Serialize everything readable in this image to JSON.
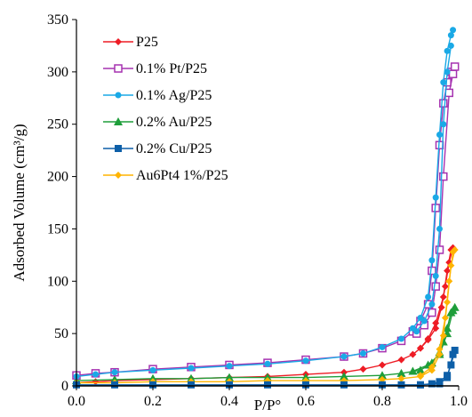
{
  "chart_data": {
    "type": "line",
    "xlabel": "P/P°",
    "ylabel": "Adsorbed Volume (cm³/g)",
    "xlim": [
      0,
      1
    ],
    "ylim": [
      0,
      350
    ],
    "x_ticks": [
      "0.0",
      "0.2",
      "0.4",
      "0.6",
      "0.8",
      "1.0"
    ],
    "y_ticks": [
      "0",
      "50",
      "100",
      "150",
      "200",
      "250",
      "300",
      "350"
    ],
    "grid": false,
    "legend_position": "top-left",
    "series": [
      {
        "name": "P25",
        "color": "#ee1c25",
        "marker": "diamond",
        "adsorption": [
          [
            0.0,
            3
          ],
          [
            0.05,
            4
          ],
          [
            0.1,
            5
          ],
          [
            0.2,
            6
          ],
          [
            0.3,
            7
          ],
          [
            0.4,
            8
          ],
          [
            0.5,
            9
          ],
          [
            0.6,
            11
          ],
          [
            0.7,
            13
          ],
          [
            0.75,
            16
          ],
          [
            0.8,
            20
          ],
          [
            0.85,
            25
          ],
          [
            0.88,
            30
          ],
          [
            0.9,
            36
          ],
          [
            0.92,
            45
          ],
          [
            0.94,
            60
          ],
          [
            0.96,
            85
          ],
          [
            0.97,
            110
          ],
          [
            0.98,
            130
          ]
        ],
        "desorption": [
          [
            0.985,
            132
          ],
          [
            0.975,
            118
          ],
          [
            0.965,
            95
          ],
          [
            0.955,
            75
          ],
          [
            0.94,
            55
          ],
          [
            0.92,
            44
          ],
          [
            0.9,
            36
          ]
        ]
      },
      {
        "name": "0.1% Pt/P25",
        "color": "#a632b0",
        "marker": "square-open",
        "adsorption": [
          [
            0.0,
            10
          ],
          [
            0.05,
            12
          ],
          [
            0.1,
            13
          ],
          [
            0.2,
            16
          ],
          [
            0.3,
            18
          ],
          [
            0.4,
            20
          ],
          [
            0.5,
            22
          ],
          [
            0.6,
            25
          ],
          [
            0.7,
            28
          ],
          [
            0.75,
            31
          ],
          [
            0.8,
            36
          ],
          [
            0.85,
            43
          ],
          [
            0.88,
            52
          ],
          [
            0.9,
            62
          ],
          [
            0.92,
            78
          ],
          [
            0.93,
            110
          ],
          [
            0.94,
            170
          ],
          [
            0.95,
            230
          ],
          [
            0.96,
            270
          ],
          [
            0.97,
            290
          ],
          [
            0.98,
            300
          ],
          [
            0.99,
            305
          ]
        ],
        "desorption": [
          [
            0.985,
            298
          ],
          [
            0.975,
            280
          ],
          [
            0.96,
            200
          ],
          [
            0.95,
            130
          ],
          [
            0.94,
            95
          ],
          [
            0.93,
            70
          ],
          [
            0.91,
            58
          ],
          [
            0.89,
            50
          ]
        ]
      },
      {
        "name": "0.1% Ag/P25",
        "color": "#1aa9e6",
        "marker": "circle",
        "adsorption": [
          [
            0.0,
            9
          ],
          [
            0.05,
            11
          ],
          [
            0.1,
            13
          ],
          [
            0.2,
            15
          ],
          [
            0.3,
            17
          ],
          [
            0.4,
            19
          ],
          [
            0.5,
            21
          ],
          [
            0.6,
            24
          ],
          [
            0.7,
            28
          ],
          [
            0.75,
            31
          ],
          [
            0.8,
            37
          ],
          [
            0.85,
            45
          ],
          [
            0.88,
            55
          ],
          [
            0.9,
            65
          ],
          [
            0.92,
            85
          ],
          [
            0.93,
            120
          ],
          [
            0.94,
            180
          ],
          [
            0.95,
            240
          ],
          [
            0.96,
            290
          ],
          [
            0.97,
            320
          ],
          [
            0.98,
            335
          ],
          [
            0.985,
            340
          ]
        ],
        "desorption": [
          [
            0.98,
            325
          ],
          [
            0.97,
            300
          ],
          [
            0.96,
            250
          ],
          [
            0.95,
            150
          ],
          [
            0.94,
            105
          ],
          [
            0.93,
            78
          ],
          [
            0.91,
            62
          ],
          [
            0.89,
            52
          ]
        ]
      },
      {
        "name": "0.2% Au/P25",
        "color": "#1e9e3a",
        "marker": "triangle",
        "adsorption": [
          [
            0.0,
            5
          ],
          [
            0.1,
            6
          ],
          [
            0.2,
            7
          ],
          [
            0.3,
            7
          ],
          [
            0.4,
            8
          ],
          [
            0.5,
            8
          ],
          [
            0.6,
            8
          ],
          [
            0.7,
            9
          ],
          [
            0.8,
            10
          ],
          [
            0.85,
            12
          ],
          [
            0.9,
            15
          ],
          [
            0.93,
            22
          ],
          [
            0.95,
            32
          ],
          [
            0.96,
            42
          ],
          [
            0.97,
            55
          ],
          [
            0.98,
            70
          ],
          [
            0.99,
            75
          ]
        ],
        "desorption": [
          [
            0.985,
            72
          ],
          [
            0.97,
            50
          ],
          [
            0.95,
            30
          ],
          [
            0.92,
            20
          ],
          [
            0.88,
            14
          ]
        ]
      },
      {
        "name": "0.2% Cu/P25",
        "color": "#0d5fa8",
        "marker": "square",
        "adsorption": [
          [
            0.0,
            1
          ],
          [
            0.1,
            1
          ],
          [
            0.2,
            1
          ],
          [
            0.3,
            1
          ],
          [
            0.4,
            1
          ],
          [
            0.5,
            1
          ],
          [
            0.6,
            1
          ],
          [
            0.7,
            1
          ],
          [
            0.8,
            1
          ],
          [
            0.85,
            1
          ],
          [
            0.9,
            1
          ],
          [
            0.93,
            2
          ],
          [
            0.95,
            4
          ],
          [
            0.97,
            10
          ],
          [
            0.98,
            20
          ],
          [
            0.99,
            34
          ]
        ],
        "desorption": [
          [
            0.985,
            30
          ],
          [
            0.97,
            8
          ],
          [
            0.95,
            2
          ],
          [
            0.9,
            1
          ]
        ]
      },
      {
        "name": "Au6Pt4 1%/P25",
        "color": "#ffb400",
        "marker": "diamond",
        "adsorption": [
          [
            0.0,
            3
          ],
          [
            0.1,
            3
          ],
          [
            0.2,
            4
          ],
          [
            0.3,
            4
          ],
          [
            0.4,
            4
          ],
          [
            0.5,
            5
          ],
          [
            0.6,
            5
          ],
          [
            0.7,
            5
          ],
          [
            0.8,
            6
          ],
          [
            0.85,
            7
          ],
          [
            0.9,
            9
          ],
          [
            0.93,
            15
          ],
          [
            0.95,
            30
          ],
          [
            0.96,
            48
          ],
          [
            0.97,
            80
          ],
          [
            0.98,
            115
          ],
          [
            0.99,
            130
          ]
        ],
        "desorption": [
          [
            0.985,
            128
          ],
          [
            0.975,
            100
          ],
          [
            0.965,
            65
          ],
          [
            0.95,
            35
          ],
          [
            0.93,
            18
          ],
          [
            0.9,
            10
          ]
        ]
      }
    ]
  }
}
